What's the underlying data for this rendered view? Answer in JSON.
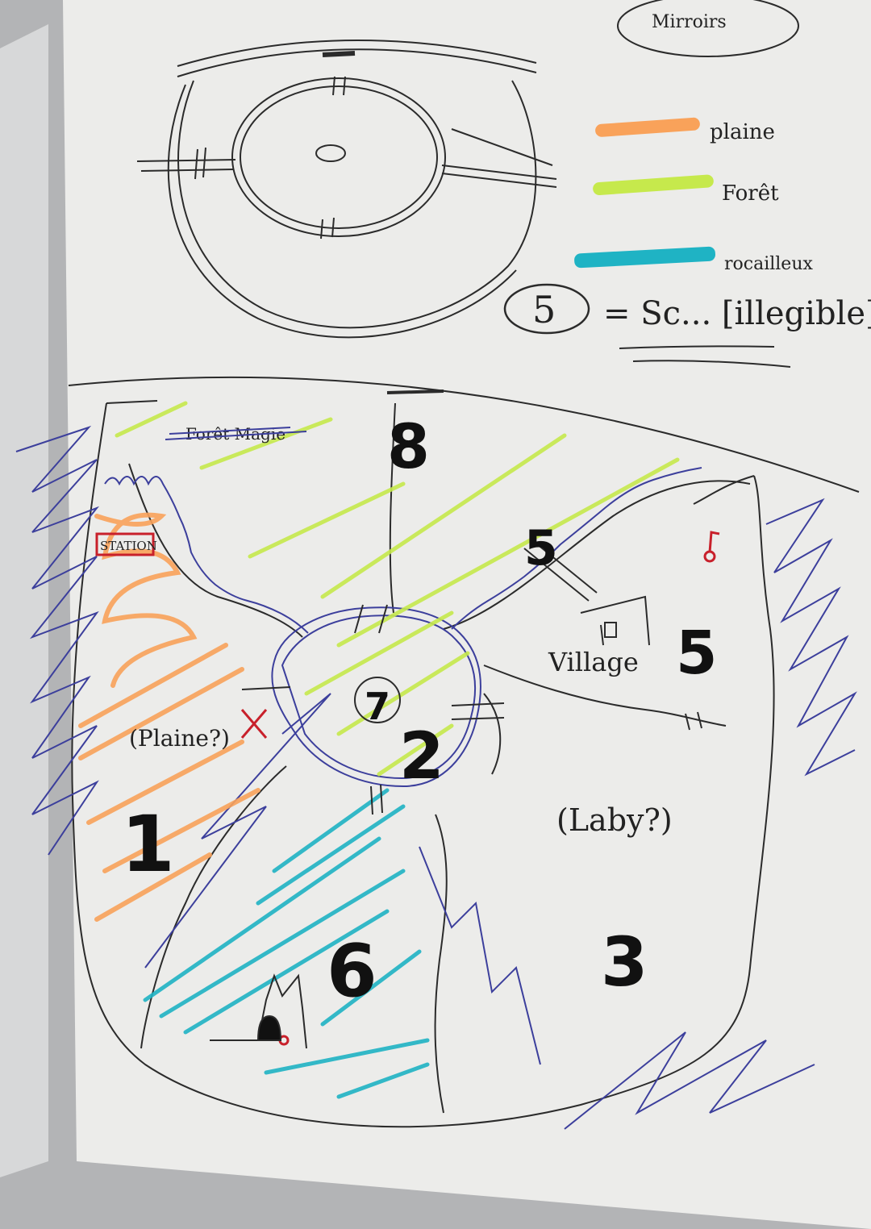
{
  "legend": {
    "title": "Mirroirs",
    "items": [
      {
        "label": "plaine",
        "color": "#f9a25a"
      },
      {
        "label": "Forêt",
        "color": "#c6e94c"
      },
      {
        "label": "rocailleux",
        "color": "#1fb3c4"
      }
    ],
    "key_number": "5",
    "key_text": "= Sc... [illegible]"
  },
  "map": {
    "labels": {
      "crossed": "Forêt Magie",
      "station": "STATION",
      "plaine": "(Plaine?)",
      "village": "Village",
      "laby": "(Laby?)"
    },
    "zones": [
      "1",
      "2",
      "3",
      "5",
      "5",
      "6",
      "7",
      "8"
    ]
  },
  "colors": {
    "paper": "#ececea",
    "ink": "#2b2b2b",
    "blue_pen": "#3c3f9c",
    "red_pen": "#c8202b"
  }
}
